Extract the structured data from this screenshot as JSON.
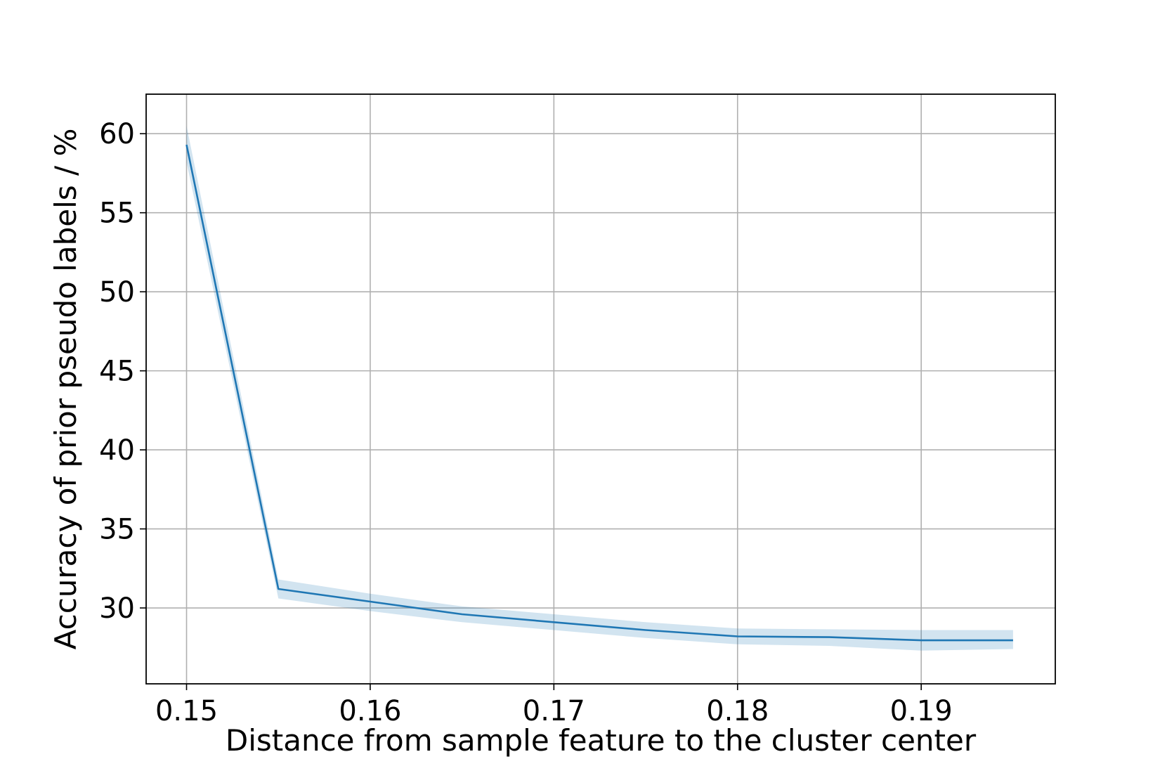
{
  "chart_data": {
    "type": "line",
    "title": "",
    "xlabel": "Distance from sample feature to the cluster center",
    "ylabel": "Accuracy of prior pseudo labels / %",
    "xlim": [
      0.1478,
      0.1973
    ],
    "ylim": [
      25.2,
      62.5
    ],
    "x_ticks": [
      0.15,
      0.16,
      0.17,
      0.18,
      0.19
    ],
    "x_tick_labels": [
      "0.15",
      "0.16",
      "0.17",
      "0.18",
      "0.19"
    ],
    "y_ticks": [
      30,
      35,
      40,
      45,
      50,
      55,
      60
    ],
    "y_tick_labels": [
      "30",
      "35",
      "40",
      "45",
      "50",
      "55",
      "60"
    ],
    "grid": true,
    "series": [
      {
        "color": "#1f77b4",
        "band_color": "#1f77b4",
        "x": [
          0.15,
          0.155,
          0.16,
          0.165,
          0.17,
          0.175,
          0.18,
          0.185,
          0.19,
          0.195
        ],
        "y": [
          59.3,
          31.2,
          30.4,
          29.6,
          29.1,
          28.6,
          28.2,
          28.15,
          27.95,
          27.95
        ],
        "y_lower": [
          58.2,
          30.6,
          29.8,
          29.1,
          28.6,
          28.1,
          27.7,
          27.6,
          27.3,
          27.4
        ],
        "y_upper": [
          60.5,
          31.8,
          30.9,
          30.1,
          29.6,
          29.1,
          28.7,
          28.65,
          28.6,
          28.6
        ]
      }
    ]
  }
}
